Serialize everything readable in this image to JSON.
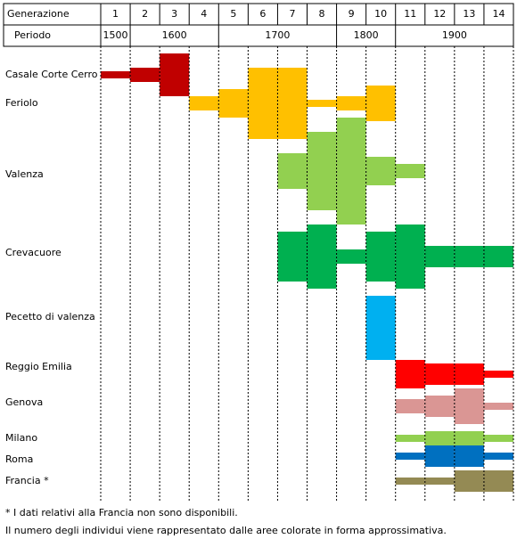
{
  "chart_data": {
    "type": "generation-grid",
    "row_header": "Generazione",
    "period_header": "Periodo",
    "generations": [
      1,
      2,
      3,
      4,
      5,
      6,
      7,
      8,
      9,
      10,
      11,
      12,
      13,
      14
    ],
    "periods": [
      {
        "label": "1500",
        "from": 1,
        "to": 1
      },
      {
        "label": "1600",
        "from": 2,
        "to": 4
      },
      {
        "label": "1700",
        "from": 5,
        "to": 8
      },
      {
        "label": "1800",
        "from": 9,
        "to": 10
      },
      {
        "label": "1900",
        "from": 11,
        "to": 14
      }
    ],
    "series": [
      {
        "name": "Casale Corte Cerro",
        "color": "#c00000",
        "values": [
          8,
          16,
          48,
          null,
          null,
          null,
          null,
          null,
          null,
          null,
          null,
          null,
          null,
          null
        ]
      },
      {
        "name": "Feriolo",
        "color": "#ffc000",
        "values": [
          null,
          null,
          null,
          16,
          32,
          80,
          80,
          8,
          16,
          40,
          null,
          null,
          null,
          null
        ]
      },
      {
        "name": "Valenza",
        "color": "#92d050",
        "values": [
          null,
          null,
          null,
          null,
          null,
          null,
          40,
          88,
          120,
          32,
          16,
          null,
          null,
          null
        ]
      },
      {
        "name": "Crevacuore",
        "color": "#00b050",
        "values": [
          null,
          null,
          null,
          null,
          null,
          null,
          56,
          72,
          16,
          56,
          72,
          24,
          24,
          24
        ]
      },
      {
        "name": "Pecetto di valenza",
        "color": "#00b0f0",
        "values": [
          null,
          null,
          null,
          null,
          null,
          null,
          null,
          null,
          null,
          72,
          null,
          null,
          null,
          null
        ]
      },
      {
        "name": "Reggio Emilia",
        "color": "#ff0000",
        "values": [
          null,
          null,
          null,
          null,
          null,
          null,
          null,
          null,
          null,
          null,
          32,
          24,
          24,
          8
        ]
      },
      {
        "name": "Genova",
        "color": "#da9694",
        "values": [
          null,
          null,
          null,
          null,
          null,
          null,
          null,
          null,
          null,
          null,
          16,
          24,
          40,
          8
        ]
      },
      {
        "name": "Milano",
        "color": "#92d050",
        "values": [
          null,
          null,
          null,
          null,
          null,
          null,
          null,
          null,
          null,
          null,
          8,
          16,
          16,
          8
        ]
      },
      {
        "name": "Roma",
        "color": "#0070c0",
        "values": [
          null,
          null,
          null,
          null,
          null,
          null,
          null,
          null,
          null,
          null,
          8,
          24,
          24,
          8
        ]
      },
      {
        "name": "Francia *",
        "color": "#948a54",
        "values": [
          null,
          null,
          null,
          null,
          null,
          null,
          null,
          null,
          null,
          null,
          8,
          8,
          24,
          24
        ]
      }
    ],
    "notes": [
      "* I dati relativi alla Francia non sono disponibili.",
      "Il numero degli individui viene rappresentato dalle aree colorate in forma approssimativa."
    ]
  }
}
